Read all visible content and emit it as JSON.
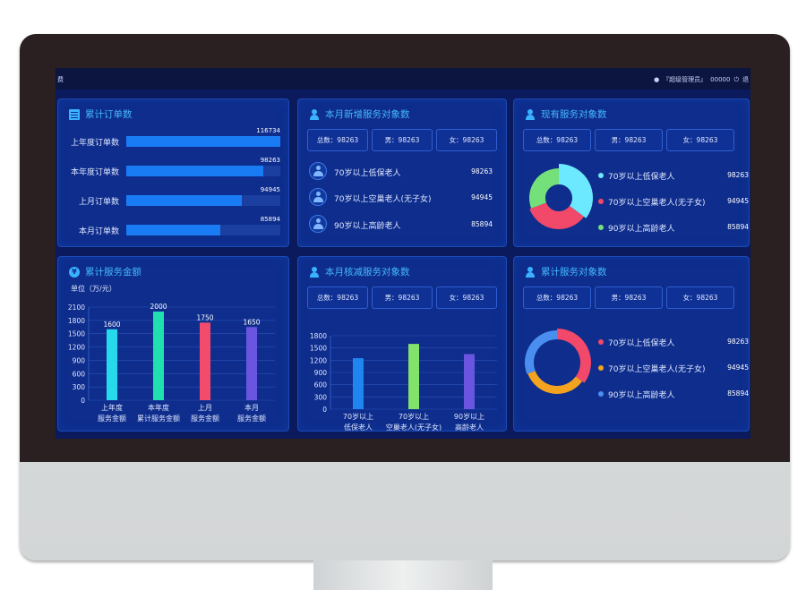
{
  "topbar": {
    "left_text": "费",
    "user_label": "『超级管理员』",
    "user_id": "00000",
    "exit_label": "退"
  },
  "panels": {
    "orders": {
      "title": "累计订单数",
      "rows": [
        {
          "label": "上年度订单数",
          "value": "116734",
          "fraction": 1.0
        },
        {
          "label": "本年度订单数",
          "value": "98263",
          "fraction": 0.89
        },
        {
          "label": "上月订单数",
          "value": "94945",
          "fraction": 0.75
        },
        {
          "label": "本月订单数",
          "value": "85894",
          "fraction": 0.61
        }
      ]
    },
    "new_clients": {
      "title": "本月新增服务对象数",
      "stats": [
        "总数：98263",
        "男：98263",
        "女：98263"
      ],
      "items": [
        {
          "label": "70岁以上低保老人",
          "value": "98263"
        },
        {
          "label": "70岁以上空巢老人(无子女)",
          "value": "94945"
        },
        {
          "label": "90岁以上高龄老人",
          "value": "85894"
        }
      ]
    },
    "current_clients": {
      "title": "现有服务对象数",
      "stats": [
        "总数：98263",
        "男：98263",
        "女：98263"
      ],
      "legend": [
        {
          "label": "70岁以上低保老人",
          "value": "98263",
          "color": "#6ce8ff"
        },
        {
          "label": "70岁以上空巢老人(无子女)",
          "value": "94945",
          "color": "#f2486a"
        },
        {
          "label": "90岁以上高龄老人",
          "value": "85894",
          "color": "#74e07a"
        }
      ],
      "pie_values": [
        98263,
        94945,
        85894
      ]
    },
    "amount": {
      "title": "累计服务金额",
      "unit": "单位（万/元）"
    },
    "verified": {
      "title": "本月核减服务对象数",
      "stats": [
        "总数：98263",
        "男：98263",
        "女：98263"
      ]
    },
    "total_clients": {
      "title": "累计服务对象数",
      "stats": [
        "总数：98263",
        "男：98263",
        "女：98263"
      ],
      "legend": [
        {
          "label": "70岁以上低保老人",
          "value": "98263",
          "color": "#f2486a"
        },
        {
          "label": "70岁以上空巢老人(无子女)",
          "value": "94945",
          "color": "#f4a31e"
        },
        {
          "label": "90岁以上高龄老人",
          "value": "85894",
          "color": "#4a8ff0"
        }
      ],
      "ring_values": [
        98263,
        94945,
        85894
      ]
    }
  },
  "chart_data": [
    {
      "type": "bar",
      "categories": [
        "上年度\n服务金额",
        "本年度\n累计服务金额",
        "上月\n服务金额",
        "本月\n服务金额"
      ],
      "values": [
        1600,
        2000,
        1750,
        1650
      ],
      "colors": [
        "#27d9ec",
        "#21e0b0",
        "#f24b6c",
        "#6a55e0"
      ],
      "ylim": [
        0,
        2100
      ],
      "yticks": [
        0,
        300,
        600,
        900,
        1200,
        1500,
        1800,
        2100
      ],
      "ylabel": "单位（万/元）",
      "data_labels": true,
      "grid": true
    },
    {
      "type": "bar",
      "categories": [
        "70岁以上\n低保老人",
        "70岁以上\n空巢老人(无子女)",
        "90岁以上\n高龄老人"
      ],
      "values": [
        1250,
        1600,
        1350
      ],
      "colors": [
        "#1f86f0",
        "#82e26a",
        "#6a55e0"
      ],
      "ylim": [
        0,
        1800
      ],
      "yticks": [
        0,
        300,
        600,
        900,
        1200,
        1500,
        1800
      ],
      "grid": true
    }
  ]
}
